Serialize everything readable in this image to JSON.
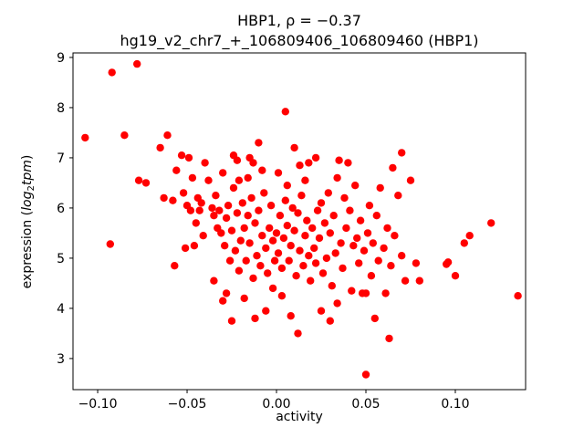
{
  "colors": {
    "marker": "#ff0000",
    "axis": "#000000",
    "background": "#ffffff"
  },
  "chart_data": {
    "type": "scatter",
    "title_line1": "HBP1, ρ = −0.37",
    "title_line2": "hg19_v2_chr7_+_106809406_106809460 (HBP1)",
    "xlabel": "activity",
    "ylabel": {
      "prefix": "expression (",
      "log": "log",
      "sub": "2",
      "tpm": "tpm",
      "suffix": ")"
    },
    "legend": "none",
    "grid": false,
    "xlim": [
      -0.1138,
      0.1393
    ],
    "ylim": [
      2.38,
      9.09
    ],
    "xticks": [
      -0.1,
      -0.05,
      0.0,
      0.05,
      0.1
    ],
    "yticks": [
      3,
      4,
      5,
      6,
      7,
      8,
      9
    ],
    "marker_color": "#ff0000",
    "marker_radius": 4.2,
    "points": [
      [
        -0.107,
        7.4
      ],
      [
        -0.092,
        8.7
      ],
      [
        -0.093,
        5.28
      ],
      [
        -0.085,
        7.45
      ],
      [
        -0.078,
        8.87
      ],
      [
        -0.077,
        6.55
      ],
      [
        -0.073,
        6.5
      ],
      [
        -0.065,
        7.2
      ],
      [
        -0.061,
        7.45
      ],
      [
        -0.063,
        6.2
      ],
      [
        -0.058,
        6.15
      ],
      [
        -0.056,
        6.75
      ],
      [
        -0.052,
        6.3
      ],
      [
        -0.05,
        6.05
      ],
      [
        -0.048,
        5.95
      ],
      [
        -0.047,
        6.6
      ],
      [
        -0.045,
        5.7
      ],
      [
        -0.044,
        6.2
      ],
      [
        -0.043,
        5.95
      ],
      [
        -0.042,
        6.1
      ],
      [
        -0.041,
        5.45
      ],
      [
        -0.046,
        5.25
      ],
      [
        -0.051,
        5.2
      ],
      [
        -0.057,
        4.85
      ],
      [
        -0.049,
        7.0
      ],
      [
        -0.053,
        7.05
      ],
      [
        -0.04,
        6.9
      ],
      [
        -0.038,
        6.55
      ],
      [
        -0.036,
        6.0
      ],
      [
        -0.035,
        5.85
      ],
      [
        -0.034,
        6.25
      ],
      [
        -0.033,
        5.6
      ],
      [
        -0.032,
        5.95
      ],
      [
        -0.031,
        5.5
      ],
      [
        -0.03,
        6.7
      ],
      [
        -0.029,
        5.25
      ],
      [
        -0.028,
        5.8
      ],
      [
        -0.027,
        6.05
      ],
      [
        -0.026,
        4.95
      ],
      [
        -0.025,
        5.55
      ],
      [
        -0.024,
        6.4
      ],
      [
        -0.023,
        5.15
      ],
      [
        -0.022,
        5.9
      ],
      [
        -0.021,
        4.75
      ],
      [
        -0.02,
        5.35
      ],
      [
        -0.028,
        4.3
      ],
      [
        -0.025,
        3.75
      ],
      [
        -0.03,
        4.15
      ],
      [
        -0.035,
        4.55
      ],
      [
        -0.022,
        6.95
      ],
      [
        -0.024,
        7.05
      ],
      [
        -0.021,
        6.55
      ],
      [
        -0.019,
        6.1
      ],
      [
        -0.018,
        5.6
      ],
      [
        -0.017,
        4.95
      ],
      [
        -0.016,
        5.85
      ],
      [
        -0.015,
        5.3
      ],
      [
        -0.014,
        6.2
      ],
      [
        -0.013,
        4.6
      ],
      [
        -0.012,
        5.7
      ],
      [
        -0.011,
        5.05
      ],
      [
        -0.01,
        5.95
      ],
      [
        -0.009,
        4.85
      ],
      [
        -0.008,
        5.45
      ],
      [
        -0.007,
        6.3
      ],
      [
        -0.006,
        5.2
      ],
      [
        -0.005,
        4.7
      ],
      [
        -0.004,
        5.6
      ],
      [
        -0.003,
        6.05
      ],
      [
        -0.002,
        5.35
      ],
      [
        -0.001,
        4.95
      ],
      [
        -0.01,
        7.3
      ],
      [
        -0.013,
        6.9
      ],
      [
        -0.016,
        6.6
      ],
      [
        -0.018,
        4.2
      ],
      [
        -0.012,
        3.8
      ],
      [
        -0.006,
        3.95
      ],
      [
        -0.002,
        4.4
      ],
      [
        -0.015,
        7.0
      ],
      [
        -0.008,
        6.75
      ],
      [
        0.0,
        5.5
      ],
      [
        0.001,
        5.1
      ],
      [
        0.002,
        5.85
      ],
      [
        0.003,
        4.8
      ],
      [
        0.004,
        5.4
      ],
      [
        0.005,
        7.92
      ],
      [
        0.005,
        6.15
      ],
      [
        0.006,
        5.65
      ],
      [
        0.007,
        4.95
      ],
      [
        0.008,
        5.25
      ],
      [
        0.009,
        6.0
      ],
      [
        0.01,
        5.55
      ],
      [
        0.011,
        4.65
      ],
      [
        0.012,
        5.9
      ],
      [
        0.013,
        5.15
      ],
      [
        0.014,
        6.25
      ],
      [
        0.015,
        4.85
      ],
      [
        0.016,
        5.45
      ],
      [
        0.017,
        5.75
      ],
      [
        0.018,
        5.05
      ],
      [
        0.019,
        4.55
      ],
      [
        0.01,
        7.2
      ],
      [
        0.013,
        6.85
      ],
      [
        0.016,
        6.55
      ],
      [
        0.008,
        3.85
      ],
      [
        0.012,
        3.5
      ],
      [
        0.003,
        4.25
      ],
      [
        0.018,
        6.9
      ],
      [
        0.006,
        6.45
      ],
      [
        0.001,
        6.7
      ],
      [
        0.02,
        5.6
      ],
      [
        0.021,
        5.2
      ],
      [
        0.022,
        4.9
      ],
      [
        0.023,
        5.95
      ],
      [
        0.024,
        5.4
      ],
      [
        0.025,
        6.1
      ],
      [
        0.026,
        4.7
      ],
      [
        0.027,
        5.7
      ],
      [
        0.028,
        5.0
      ],
      [
        0.029,
        6.3
      ],
      [
        0.03,
        5.5
      ],
      [
        0.031,
        4.45
      ],
      [
        0.032,
        5.85
      ],
      [
        0.033,
        5.1
      ],
      [
        0.034,
        6.6
      ],
      [
        0.035,
        6.95
      ],
      [
        0.036,
        5.3
      ],
      [
        0.037,
        4.8
      ],
      [
        0.038,
        6.2
      ],
      [
        0.039,
        5.6
      ],
      [
        0.04,
        6.9
      ],
      [
        0.041,
        5.95
      ],
      [
        0.042,
        4.35
      ],
      [
        0.043,
        5.25
      ],
      [
        0.044,
        6.45
      ],
      [
        0.025,
        3.95
      ],
      [
        0.03,
        3.75
      ],
      [
        0.022,
        7.0
      ],
      [
        0.034,
        4.1
      ],
      [
        0.045,
        5.4
      ],
      [
        0.046,
        4.9
      ],
      [
        0.047,
        5.75
      ],
      [
        0.048,
        4.3
      ],
      [
        0.049,
        5.15
      ],
      [
        0.05,
        2.68
      ],
      [
        0.05,
        4.3
      ],
      [
        0.051,
        5.5
      ],
      [
        0.052,
        6.05
      ],
      [
        0.053,
        4.65
      ],
      [
        0.054,
        5.3
      ],
      [
        0.055,
        3.8
      ],
      [
        0.056,
        5.85
      ],
      [
        0.057,
        4.95
      ],
      [
        0.058,
        6.4
      ],
      [
        0.06,
        5.2
      ],
      [
        0.061,
        4.3
      ],
      [
        0.062,
        5.6
      ],
      [
        0.063,
        3.4
      ],
      [
        0.064,
        4.85
      ],
      [
        0.065,
        6.8
      ],
      [
        0.066,
        5.45
      ],
      [
        0.068,
        6.25
      ],
      [
        0.07,
        7.1
      ],
      [
        0.07,
        5.05
      ],
      [
        0.072,
        4.55
      ],
      [
        0.075,
        6.55
      ],
      [
        0.078,
        4.9
      ],
      [
        0.08,
        4.55
      ],
      [
        0.095,
        4.88
      ],
      [
        0.096,
        4.92
      ],
      [
        0.1,
        4.65
      ],
      [
        0.105,
        5.3
      ],
      [
        0.108,
        5.45
      ],
      [
        0.12,
        5.7
      ],
      [
        0.135,
        4.25
      ]
    ]
  }
}
